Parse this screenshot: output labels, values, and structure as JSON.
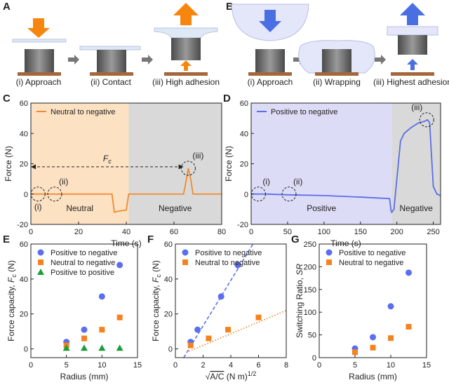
{
  "schematics": [
    {
      "letter": "A",
      "labels": [
        "(i) Approach",
        "(ii) Contact",
        "(iii) High adhesion"
      ]
    },
    {
      "letter": "B",
      "labels": [
        "(i) Approach",
        "(ii) Wrapping",
        "(iii) Highest adhesion"
      ]
    }
  ],
  "chart_data": [
    {
      "panel": "C",
      "type": "line",
      "xlabel": [
        {
          "text": "Time (s)"
        }
      ],
      "ylabel": [
        {
          "text": "Force (N)"
        }
      ],
      "xlim": [
        0,
        80
      ],
      "xticks": [
        0,
        20,
        40,
        60,
        80
      ],
      "ylim": [
        -20,
        60
      ],
      "yticks": [
        -20,
        0,
        20,
        40,
        60
      ],
      "regions": [
        {
          "x0": 0,
          "x1": 41,
          "color": "#fde1c3",
          "label": "Neutral"
        },
        {
          "x0": 41,
          "x1": 80,
          "color": "#d9d9d9",
          "label": "Negative"
        }
      ],
      "x": [
        0,
        10,
        20,
        30,
        34,
        35,
        36,
        38,
        40,
        41,
        42,
        50,
        60,
        64,
        65,
        66,
        67,
        68,
        70,
        80
      ],
      "series": [
        {
          "name": "Neutral to negative",
          "color": "#f28a2e",
          "values": [
            0,
            0,
            0,
            0,
            0,
            -12,
            -11.5,
            -11,
            -10.5,
            0,
            0,
            0,
            0,
            0,
            8,
            17,
            10,
            0,
            0,
            0
          ]
        }
      ],
      "annotations": [
        {
          "label": "(i)",
          "x": 3,
          "y": 0,
          "label_pos": "below"
        },
        {
          "label": "(ii)",
          "x": 10,
          "y": 0,
          "label_pos": "above"
        },
        {
          "label": "(iii)",
          "x": 66,
          "y": 17,
          "label_pos": "above"
        }
      ],
      "arrow": {
        "x": [
          0,
          64
        ],
        "y": 18,
        "label": "F",
        "label_sub": "c"
      }
    },
    {
      "panel": "D",
      "type": "line",
      "xlabel": [
        {
          "text": "Time (s)"
        }
      ],
      "ylabel": [
        {
          "text": "Force (N)"
        }
      ],
      "xlim": [
        0,
        260
      ],
      "xticks": [
        0,
        50,
        100,
        150,
        200,
        250
      ],
      "ylim": [
        -20,
        60
      ],
      "yticks": [
        -20,
        0,
        20,
        40,
        60
      ],
      "regions": [
        {
          "x0": 0,
          "x1": 193,
          "color": "#dcdcf6",
          "label": "Positive"
        },
        {
          "x0": 193,
          "x1": 260,
          "color": "#d9d9d9",
          "label": "Negative"
        }
      ],
      "x": [
        0,
        20,
        50,
        100,
        150,
        190,
        192,
        193,
        196,
        200,
        205,
        210,
        215,
        220,
        230,
        238,
        242,
        245,
        247,
        250,
        255,
        260
      ],
      "series": [
        {
          "name": "Positive to negative",
          "color": "#5b6ee6",
          "values": [
            0,
            0,
            -0.5,
            -1,
            -2,
            -3,
            -11,
            -12,
            -10,
            10,
            35,
            40,
            42,
            44,
            47,
            48,
            49,
            47,
            30,
            5,
            0,
            -1
          ]
        }
      ],
      "annotations": [
        {
          "label": "(i)",
          "x": 10,
          "y": 0,
          "label_pos": "above"
        },
        {
          "label": "(ii)",
          "x": 52,
          "y": 0,
          "label_pos": "above"
        },
        {
          "label": "(iii)",
          "x": 241,
          "y": 49,
          "label_pos": "above-left"
        }
      ]
    },
    {
      "panel": "E",
      "type": "scatter",
      "xlabel": [
        {
          "text": "Radius (mm)"
        }
      ],
      "ylabel": [
        {
          "text": "Force capacity, "
        },
        {
          "text": "F",
          "style": "italic"
        },
        {
          "text": "c",
          "style": "sub"
        },
        {
          "text": " (N)"
        }
      ],
      "xlim": [
        0,
        15
      ],
      "xticks": [
        0,
        5,
        10,
        15
      ],
      "ylim": [
        -5,
        60
      ],
      "yticks": [
        0,
        20,
        40,
        60
      ],
      "x": [
        5,
        7.5,
        10,
        12.5
      ],
      "series": [
        {
          "name": "Positive to negative",
          "color": "#5b6ef0",
          "marker": "circle",
          "values": [
            4,
            11,
            30,
            48
          ]
        },
        {
          "name": "Neutral to negative",
          "color": "#f5821f",
          "marker": "square",
          "values": [
            2,
            6,
            11,
            18
          ]
        },
        {
          "name": "Positive to positive",
          "color": "#1a9e3a",
          "marker": "triangle",
          "values": [
            0.5,
            0.5,
            0.5,
            0.5
          ]
        }
      ]
    },
    {
      "panel": "F",
      "type": "scatter",
      "xlabel": [
        {
          "text": "√"
        },
        {
          "text": "A/C",
          "style": "overline"
        },
        {
          "text": " (N m)"
        },
        {
          "text": "1/2",
          "style": "sup"
        }
      ],
      "ylabel": [
        {
          "text": "Force capacity, "
        },
        {
          "text": "F",
          "style": "italic"
        },
        {
          "text": "c",
          "style": "sub"
        },
        {
          "text": " (N)"
        }
      ],
      "xlim": [
        0,
        8
      ],
      "xticks": [
        0,
        2,
        4,
        6,
        8
      ],
      "ylim": [
        -5,
        60
      ],
      "yticks": [
        0,
        20,
        40,
        60
      ],
      "series": [
        {
          "name": "Positive to negative",
          "color": "#5b6ef0",
          "marker": "circle",
          "x": [
            1.1,
            1.6,
            3.3,
            4.5
          ],
          "values": [
            4,
            11,
            30,
            48
          ],
          "errors": [
            1,
            1.5,
            1,
            2
          ],
          "fit": {
            "x": [
              0.6,
              5.6
            ],
            "values": [
              -5,
              60
            ]
          },
          "fit_style": "dashed"
        },
        {
          "name": "Neutral to negative",
          "color": "#f5821f",
          "marker": "square",
          "x": [
            1.1,
            2.4,
            3.8,
            6
          ],
          "values": [
            2,
            6,
            11,
            18
          ],
          "errors": [
            0.5,
            0.5,
            1,
            1
          ],
          "fit": {
            "x": [
              0.8,
              8
            ],
            "values": [
              -2,
              22
            ]
          },
          "fit_style": "dotted"
        }
      ]
    },
    {
      "panel": "G",
      "type": "scatter",
      "xlabel": [
        {
          "text": "Radius (mm)"
        }
      ],
      "ylabel": [
        {
          "text": "Switching Ratio, "
        },
        {
          "text": "SR",
          "style": "italic"
        }
      ],
      "xlim": [
        0,
        15
      ],
      "xticks": [
        0,
        5,
        10,
        15
      ],
      "ylim": [
        0,
        250
      ],
      "yticks": [
        0,
        50,
        100,
        150,
        200,
        250
      ],
      "x": [
        5,
        7.5,
        10,
        12.5
      ],
      "series": [
        {
          "name": "Positive to negative",
          "color": "#5b6ef0",
          "marker": "circle",
          "values": [
            20,
            45,
            113,
            187
          ]
        },
        {
          "name": "Neutral to negative",
          "color": "#f5821f",
          "marker": "square",
          "values": [
            12,
            22,
            43,
            68
          ]
        }
      ]
    }
  ]
}
